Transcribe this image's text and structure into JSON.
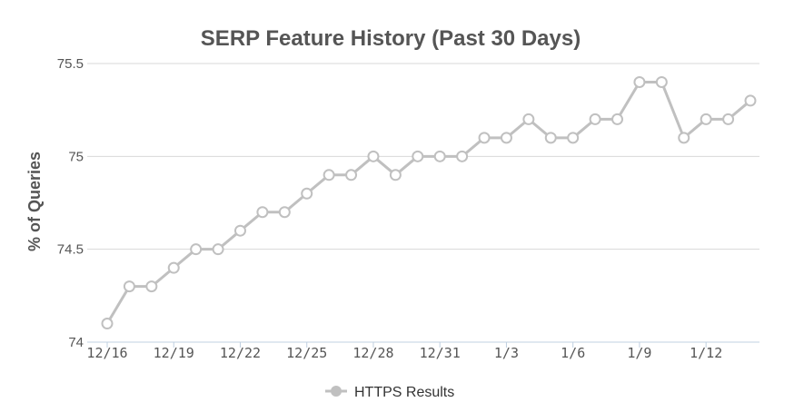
{
  "chart_data": {
    "type": "line",
    "title": "SERP Feature History (Past 30 Days)",
    "xlabel": "",
    "ylabel": "% of Queries",
    "ylim": [
      74,
      75.5
    ],
    "yticks": [
      {
        "value": 74,
        "label": "74"
      },
      {
        "value": 74.5,
        "label": "74.5"
      },
      {
        "value": 75,
        "label": "75"
      },
      {
        "value": 75.5,
        "label": "75.5"
      }
    ],
    "x": [
      "12/16",
      "12/17",
      "12/18",
      "12/19",
      "12/20",
      "12/21",
      "12/22",
      "12/23",
      "12/24",
      "12/25",
      "12/26",
      "12/27",
      "12/28",
      "12/29",
      "12/30",
      "12/31",
      "1/1",
      "1/2",
      "1/3",
      "1/4",
      "1/5",
      "1/6",
      "1/7",
      "1/8",
      "1/9",
      "1/10",
      "1/11",
      "1/12",
      "1/13",
      "1/14"
    ],
    "xticks": [
      "12/16",
      "12/19",
      "12/22",
      "12/25",
      "12/28",
      "12/31",
      "1/3",
      "1/6",
      "1/9",
      "1/12"
    ],
    "series": [
      {
        "name": "HTTPS Results",
        "color": "#c0c0c0",
        "values": [
          74.1,
          74.3,
          74.3,
          74.4,
          74.5,
          74.5,
          74.6,
          74.7,
          74.7,
          74.8,
          74.9,
          74.9,
          75.0,
          74.9,
          75.0,
          75.0,
          75.0,
          75.1,
          75.1,
          75.2,
          75.1,
          75.1,
          75.2,
          75.2,
          75.4,
          75.4,
          75.1,
          75.2,
          75.2,
          75.3
        ]
      }
    ],
    "grid": true,
    "legend_position": "bottom-center"
  }
}
